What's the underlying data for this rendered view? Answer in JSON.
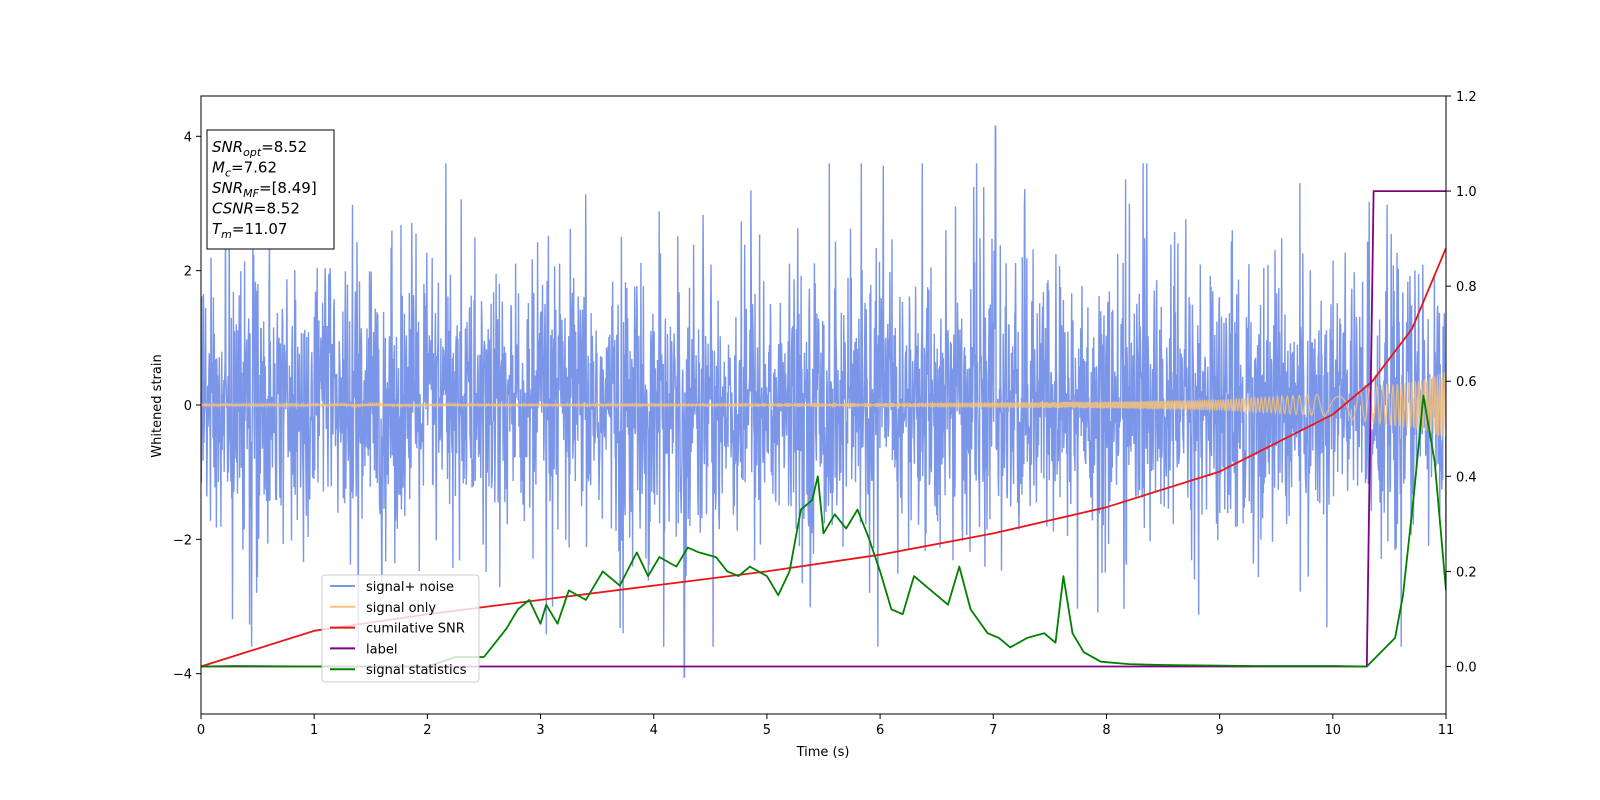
{
  "chart_data": {
    "type": "line",
    "xlabel": "Time (s)",
    "ylabel": "Whitened strain",
    "xlim": [
      0,
      11
    ],
    "ylim": [
      -4.6,
      4.6
    ],
    "y2lim": [
      -0.1,
      1.2
    ],
    "x_ticks": [
      "0",
      "1",
      "2",
      "3",
      "4",
      "5",
      "6",
      "7",
      "8",
      "9",
      "10",
      "11"
    ],
    "y_ticks": [
      "−4",
      "−2",
      "0",
      "2",
      "4"
    ],
    "y2_ticks": [
      "0.0",
      "0.2",
      "0.4",
      "0.6",
      "0.8",
      "1.0",
      "1.2"
    ],
    "info_box": [
      {
        "name": "SNR",
        "sub": "opt",
        "value": "=8.52"
      },
      {
        "name": "M",
        "sub": "c",
        "value": "=7.62"
      },
      {
        "name": "SNR",
        "sub": "MF",
        "value": "=[8.49]"
      },
      {
        "name": "CSNR",
        "sub": "",
        "value": "=8.52"
      },
      {
        "name": "T",
        "sub": "m",
        "value": "=11.07"
      }
    ],
    "legend_location": "lower-left",
    "series": [
      {
        "name": "signal+ noise",
        "color": "#7b96e8",
        "axis": "left",
        "description_values": "noise band approx ±1.5 with spikes to ±3; max 4.15 at t≈7.02; min −4.05 at t≈4.27"
      },
      {
        "name": "signal only",
        "color": "#f6c27a",
        "axis": "left",
        "chirp_envelope": {
          "x": [
            0,
            6,
            8,
            9,
            10,
            10.35,
            10.8,
            11
          ],
          "amp": [
            0.01,
            0.03,
            0.05,
            0.08,
            0.17,
            0.26,
            0.38,
            0.5
          ]
        }
      },
      {
        "name": "cumilative SNR",
        "color": "#e8161b",
        "axis": "right",
        "x": [
          0,
          1,
          2,
          3,
          4,
          5,
          6,
          7,
          8,
          9,
          10,
          10.35,
          10.7,
          11
        ],
        "values": [
          0.0,
          0.075,
          0.11,
          0.14,
          0.17,
          0.2,
          0.235,
          0.28,
          0.335,
          0.41,
          0.53,
          0.6,
          0.71,
          0.88
        ]
      },
      {
        "name": "label",
        "color": "#800080",
        "axis": "right",
        "x": [
          0,
          10.3,
          10.36,
          11
        ],
        "values": [
          0,
          0,
          1,
          1
        ]
      },
      {
        "name": "signal statistics",
        "color": "#008000",
        "axis": "right",
        "x": [
          0,
          0.3,
          1,
          2,
          2.25,
          2.5,
          2.7,
          2.8,
          2.9,
          3.0,
          3.05,
          3.15,
          3.25,
          3.4,
          3.55,
          3.7,
          3.85,
          3.95,
          4.05,
          4.2,
          4.3,
          4.4,
          4.55,
          4.65,
          4.75,
          4.85,
          5.0,
          5.1,
          5.2,
          5.3,
          5.4,
          5.45,
          5.5,
          5.6,
          5.7,
          5.8,
          5.9,
          6.0,
          6.1,
          6.2,
          6.3,
          6.45,
          6.6,
          6.7,
          6.8,
          6.95,
          7.05,
          7.15,
          7.3,
          7.45,
          7.55,
          7.62,
          7.7,
          7.8,
          7.95,
          8.2,
          8.5,
          8.9,
          9.3,
          9.7,
          10.0,
          10.3,
          10.55,
          10.62,
          10.72,
          10.8,
          10.9,
          11.0
        ],
        "values": [
          0,
          0.001,
          0,
          0,
          0.02,
          0.02,
          0.08,
          0.12,
          0.14,
          0.09,
          0.13,
          0.09,
          0.16,
          0.14,
          0.2,
          0.17,
          0.24,
          0.19,
          0.23,
          0.21,
          0.25,
          0.24,
          0.23,
          0.2,
          0.19,
          0.21,
          0.19,
          0.15,
          0.2,
          0.33,
          0.35,
          0.4,
          0.28,
          0.32,
          0.29,
          0.33,
          0.27,
          0.2,
          0.12,
          0.11,
          0.19,
          0.16,
          0.13,
          0.21,
          0.12,
          0.07,
          0.06,
          0.04,
          0.06,
          0.07,
          0.05,
          0.19,
          0.07,
          0.03,
          0.01,
          0.005,
          0.003,
          0.002,
          0.001,
          0.001,
          0.001,
          0.0,
          0.06,
          0.15,
          0.37,
          0.57,
          0.43,
          0.16
        ]
      }
    ]
  }
}
